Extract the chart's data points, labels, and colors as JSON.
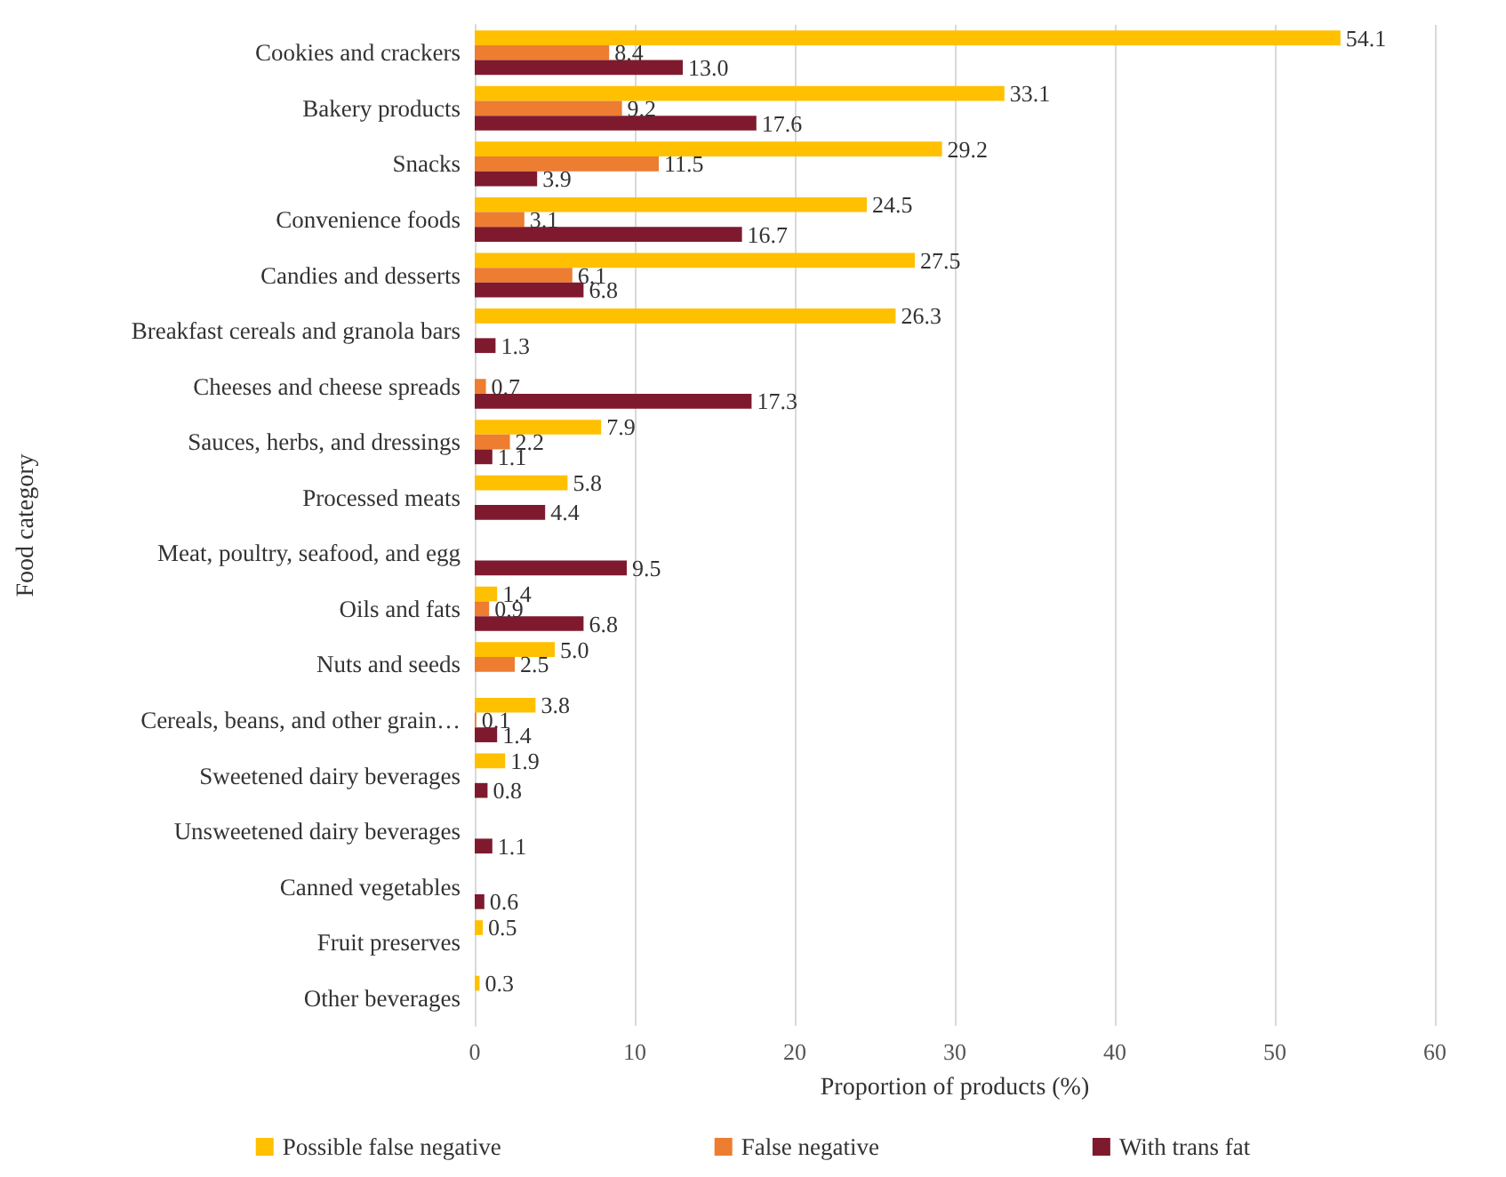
{
  "chart_data": {
    "type": "bar",
    "orientation": "horizontal",
    "xlabel": "Proportion of products (%)",
    "ylabel": "Food category",
    "categories": [
      "Cookies and crackers",
      "Bakery products",
      "Snacks",
      "Convenience foods",
      "Candies and desserts",
      "Breakfast cereals and granola bars",
      "Cheeses and cheese spreads",
      "Sauces, herbs, and dressings",
      "Processed meats",
      "Meat, poultry, seafood, and egg",
      "Oils and fats",
      "Nuts and seeds",
      "Cereals, beans, and other grain…",
      "Sweetened dairy beverages",
      "Unsweetened dairy beverages",
      "Canned vegetables",
      "Fruit preserves",
      "Other beverages"
    ],
    "series": [
      {
        "name": "Possible false negative",
        "color": "#ffc000",
        "values": [
          54.1,
          33.1,
          29.2,
          24.5,
          27.5,
          26.3,
          null,
          7.9,
          5.8,
          null,
          1.4,
          5.0,
          3.8,
          1.9,
          null,
          null,
          0.5,
          0.3
        ],
        "value_labels": [
          "54.1",
          "33.1",
          "29.2",
          "24.5",
          "27.5",
          "26.3",
          null,
          "7.9",
          "5.8",
          null,
          "1.4",
          "5.0",
          "3.8",
          "1.9",
          null,
          null,
          "0.5",
          "0.3"
        ]
      },
      {
        "name": "False negative",
        "color": "#ed7d31",
        "values": [
          8.4,
          9.2,
          11.5,
          3.1,
          6.1,
          null,
          0.7,
          2.2,
          null,
          null,
          0.9,
          2.5,
          0.1,
          null,
          null,
          null,
          null,
          null
        ],
        "value_labels": [
          "8.4",
          "9.2",
          "11.5",
          "3.1",
          "6.1",
          null,
          "0.7",
          "2.2",
          null,
          null,
          "0.9",
          "2.5",
          "0.1",
          null,
          null,
          null,
          null,
          null
        ]
      },
      {
        "name": "With trans fat",
        "color": "#7f1a2e",
        "values": [
          13.0,
          17.6,
          3.9,
          16.7,
          6.8,
          1.3,
          17.3,
          1.1,
          4.4,
          9.5,
          6.8,
          null,
          1.4,
          0.8,
          1.1,
          0.6,
          null,
          null
        ],
        "value_labels": [
          "13.0",
          "17.6",
          "3.9",
          "16.7",
          "6.8",
          "1.3",
          "17.3",
          "1.1",
          "4.4",
          "9.5",
          "6.8",
          null,
          "1.4",
          "0.8",
          "1.1",
          "0.6",
          null,
          null
        ]
      }
    ],
    "xlim": [
      0,
      60
    ],
    "xticks": [
      0,
      10,
      20,
      30,
      40,
      50,
      60
    ],
    "grid": "x",
    "legend": "bottom"
  }
}
